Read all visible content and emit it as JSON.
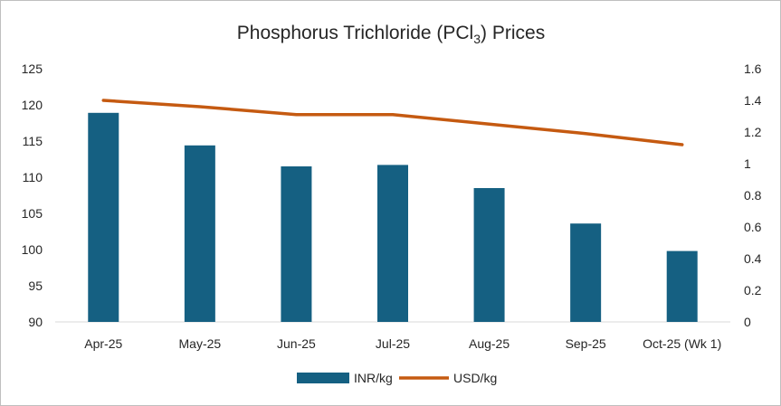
{
  "chart_data": {
    "type": "bar",
    "title": {
      "prefix": "Phosphorus Trichloride (PCl",
      "subscript": "3",
      "suffix": ") Prices"
    },
    "categories": [
      "Apr-25",
      "May-25",
      "Jun-25",
      "Jul-25",
      "Aug-25",
      "Sep-25",
      "Oct-25 (Wk 1)"
    ],
    "series": [
      {
        "name": "INR/kg",
        "type": "bar",
        "axis": "left",
        "color": "#156082",
        "values": [
          118.9,
          114.4,
          111.5,
          111.7,
          108.5,
          103.6,
          99.8
        ]
      },
      {
        "name": "USD/kg",
        "type": "line",
        "axis": "right",
        "color": "#C55A11",
        "values": [
          1.4,
          1.36,
          1.31,
          1.31,
          1.25,
          1.19,
          1.12
        ]
      }
    ],
    "y_left": {
      "min": 90,
      "max": 125,
      "step": 5,
      "ticks": [
        "90",
        "95",
        "100",
        "105",
        "110",
        "115",
        "120",
        "125"
      ]
    },
    "y_right": {
      "min": 0,
      "max": 1.6,
      "step": 0.2,
      "ticks": [
        "0",
        "0.2",
        "0.4",
        "0.6",
        "0.8",
        "1",
        "1.2",
        "1.4",
        "1.6"
      ]
    },
    "grid": false,
    "legend_position": "bottom"
  }
}
